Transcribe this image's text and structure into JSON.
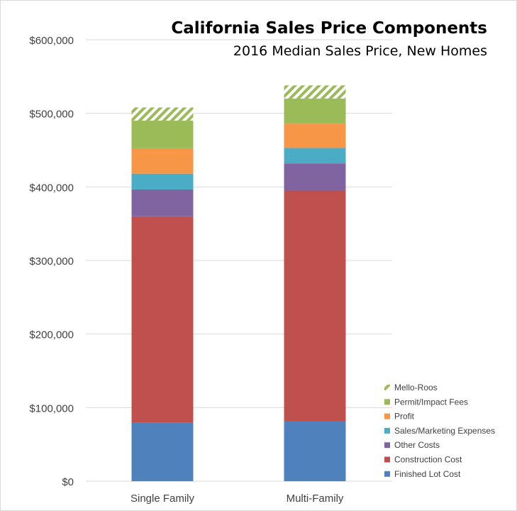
{
  "chart_data": {
    "type": "stacked-bar",
    "title": "California Sales Price Components",
    "subtitle": "2016 Median Sales Price, New Homes",
    "categories": [
      "Single Family",
      "Multi-Family"
    ],
    "ylim": [
      0,
      600000
    ],
    "yticks": [
      "$0",
      "$100,000",
      "$200,000",
      "$300,000",
      "$400,000",
      "$500,000",
      "$600,000"
    ],
    "grid": true,
    "legend_position": "bottom-right",
    "series": [
      {
        "name": "Finished Lot Cost",
        "color": "#4f81bd",
        "values": [
          80000,
          82000
        ]
      },
      {
        "name": "Construction Cost",
        "color": "#c0504d",
        "values": [
          280000,
          313000
        ]
      },
      {
        "name": "Other Costs",
        "color": "#8064a2",
        "values": [
          36500,
          37000
        ]
      },
      {
        "name": "Sales/Marketing Expenses",
        "color": "#4bacc6",
        "values": [
          21500,
          21000
        ]
      },
      {
        "name": "Profit",
        "color": "#f79646",
        "values": [
          34500,
          33000
        ]
      },
      {
        "name": "Permit/Impact Fees",
        "color": "#9bbb59",
        "values": [
          37500,
          34000
        ]
      },
      {
        "name": "Mello-Roos",
        "color": "#9bbb59",
        "pattern": "diagonal-stripes",
        "values": [
          18000,
          18000
        ]
      }
    ]
  }
}
